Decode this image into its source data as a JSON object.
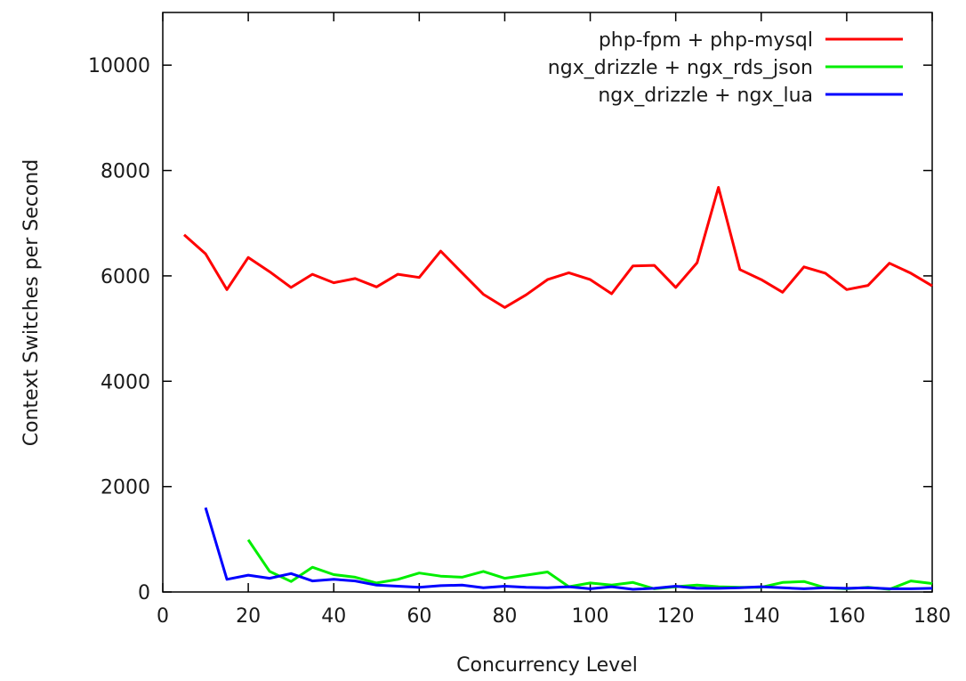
{
  "chart_data": {
    "type": "line",
    "xlabel": "Concurrency Level",
    "ylabel": "Context Switches per Second",
    "xlim": [
      0,
      180
    ],
    "ylim": [
      0,
      11000
    ],
    "xticks": [
      0,
      20,
      40,
      60,
      80,
      100,
      120,
      140,
      160,
      180
    ],
    "yticks": [
      0,
      2000,
      4000,
      6000,
      8000,
      10000
    ],
    "grid": false,
    "legend_position": "top-right",
    "series": [
      {
        "name": "php-fpm + php-mysql",
        "color": "#ff0000",
        "x": [
          5,
          10,
          15,
          20,
          25,
          30,
          35,
          40,
          45,
          50,
          55,
          60,
          65,
          70,
          75,
          80,
          85,
          90,
          95,
          100,
          105,
          110,
          115,
          120,
          125,
          130,
          135,
          140,
          145,
          150,
          155,
          160,
          165,
          170,
          175,
          180
        ],
        "y": [
          6780,
          6420,
          5740,
          6350,
          6080,
          5780,
          6030,
          5870,
          5950,
          5790,
          6030,
          5970,
          6470,
          6060,
          5650,
          5400,
          5640,
          5930,
          6060,
          5930,
          5660,
          6190,
          6200,
          5780,
          6250,
          7680,
          6120,
          5930,
          5690,
          6170,
          6050,
          5740,
          5820,
          6240,
          6050,
          5810
        ]
      },
      {
        "name": "ngx_drizzle + ngx_rds_json",
        "color": "#00ee00",
        "x": [
          20,
          25,
          30,
          35,
          40,
          45,
          50,
          55,
          60,
          65,
          70,
          75,
          80,
          85,
          90,
          95,
          100,
          105,
          110,
          115,
          120,
          125,
          130,
          135,
          140,
          145,
          150,
          155,
          160,
          165,
          170,
          175,
          180
        ],
        "y": [
          990,
          390,
          200,
          470,
          330,
          280,
          170,
          240,
          360,
          300,
          280,
          390,
          260,
          320,
          380,
          100,
          170,
          130,
          180,
          60,
          100,
          130,
          100,
          90,
          90,
          180,
          200,
          80,
          60,
          90,
          50,
          210,
          160
        ]
      },
      {
        "name": "ngx_drizzle + ngx_lua",
        "color": "#0000ff",
        "x": [
          10,
          15,
          20,
          25,
          30,
          35,
          40,
          45,
          50,
          55,
          60,
          65,
          70,
          75,
          80,
          85,
          90,
          95,
          100,
          105,
          110,
          115,
          120,
          125,
          130,
          135,
          140,
          145,
          150,
          155,
          160,
          165,
          170,
          175,
          180
        ],
        "y": [
          1600,
          240,
          320,
          260,
          350,
          210,
          240,
          210,
          130,
          110,
          90,
          120,
          130,
          80,
          110,
          90,
          80,
          100,
          60,
          100,
          50,
          70,
          110,
          70,
          70,
          80,
          100,
          80,
          60,
          80,
          70,
          80,
          60,
          60,
          70
        ]
      }
    ]
  }
}
